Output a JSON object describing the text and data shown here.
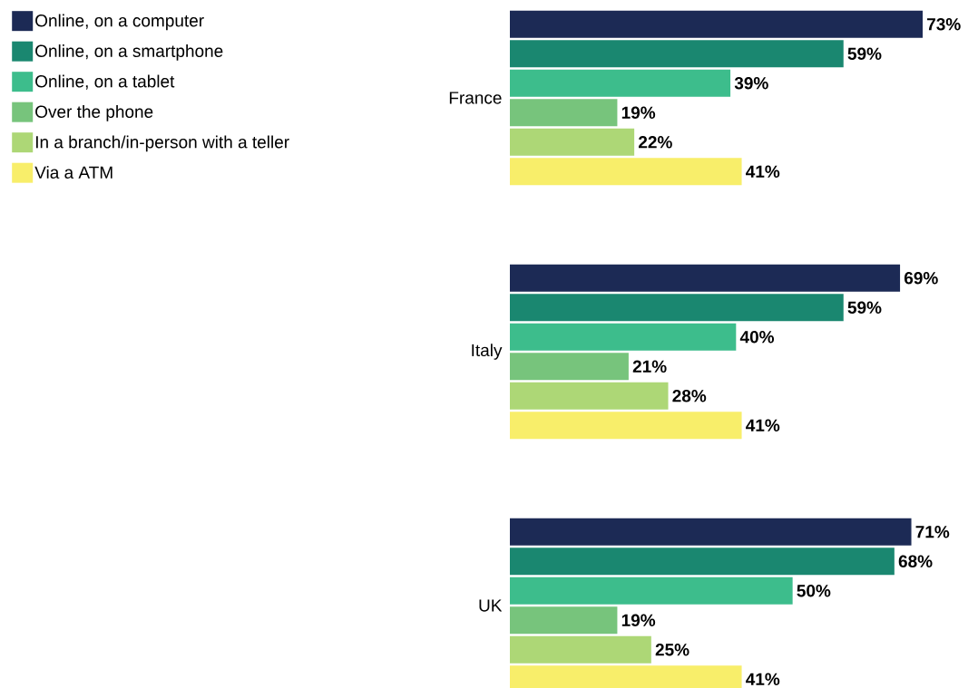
{
  "chart_data": {
    "type": "bar",
    "orientation": "horizontal",
    "categories": [
      "France",
      "Italy",
      "UK"
    ],
    "legend": "top left",
    "series": [
      {
        "name": "Online, on a computer",
        "color": "#1c2a55",
        "values": [
          73,
          69,
          71
        ],
        "value_labels": [
          "73%",
          "69%",
          "71%"
        ]
      },
      {
        "name": "Online, on a smartphone",
        "color": "#1a8770",
        "values": [
          59,
          59,
          68
        ],
        "value_labels": [
          "59%",
          "59%",
          "68%"
        ]
      },
      {
        "name": "Online, on a tablet",
        "color": "#3dbd8c",
        "values": [
          39,
          40,
          50
        ],
        "value_labels": [
          "39%",
          "40%",
          "50%"
        ]
      },
      {
        "name": "Over the phone",
        "color": "#77c47c",
        "values": [
          19,
          21,
          19
        ],
        "value_labels": [
          "19%",
          "21%",
          "19%"
        ]
      },
      {
        "name": "In a branch/in-person with a teller",
        "color": "#add776",
        "values": [
          22,
          28,
          25
        ],
        "value_labels": [
          "22%",
          "28%",
          "25%"
        ]
      },
      {
        "name": "Via a ATM",
        "color": "#f8ee6a",
        "values": [
          41,
          41,
          41
        ],
        "value_labels": [
          "41%",
          "41%",
          "41%"
        ]
      }
    ]
  }
}
